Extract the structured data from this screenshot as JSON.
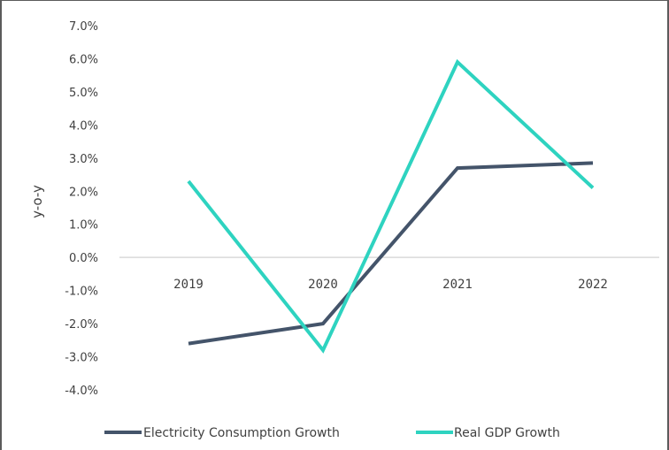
{
  "chart_data": {
    "type": "line",
    "title": "",
    "xlabel": "",
    "ylabel": "y-o-y",
    "categories": [
      "2019",
      "2020",
      "2021",
      "2022"
    ],
    "ylim": [
      -4.0,
      7.0
    ],
    "yticks": [
      {
        "value": 7.0,
        "label": "7.0%"
      },
      {
        "value": 6.0,
        "label": "6.0%"
      },
      {
        "value": 5.0,
        "label": "5.0%"
      },
      {
        "value": 4.0,
        "label": "4.0%"
      },
      {
        "value": 3.0,
        "label": "3.0%"
      },
      {
        "value": 2.0,
        "label": "2.0%"
      },
      {
        "value": 1.0,
        "label": "1.0%"
      },
      {
        "value": 0.0,
        "label": "0.0%"
      },
      {
        "value": -1.0,
        "label": "-1.0%"
      },
      {
        "value": -2.0,
        "label": "-2.0%"
      },
      {
        "value": -3.0,
        "label": "-3.0%"
      },
      {
        "value": -4.0,
        "label": "-4.0%"
      }
    ],
    "grid": false,
    "legend": "bottom",
    "series": [
      {
        "name": "Electricity Consumption Growth",
        "color": "#44546a",
        "values": [
          -2.6,
          -2.0,
          2.7,
          2.85
        ]
      },
      {
        "name": "Real GDP Growth",
        "color": "#2ed3c0",
        "values": [
          2.3,
          -2.8,
          5.9,
          2.1
        ]
      }
    ]
  }
}
